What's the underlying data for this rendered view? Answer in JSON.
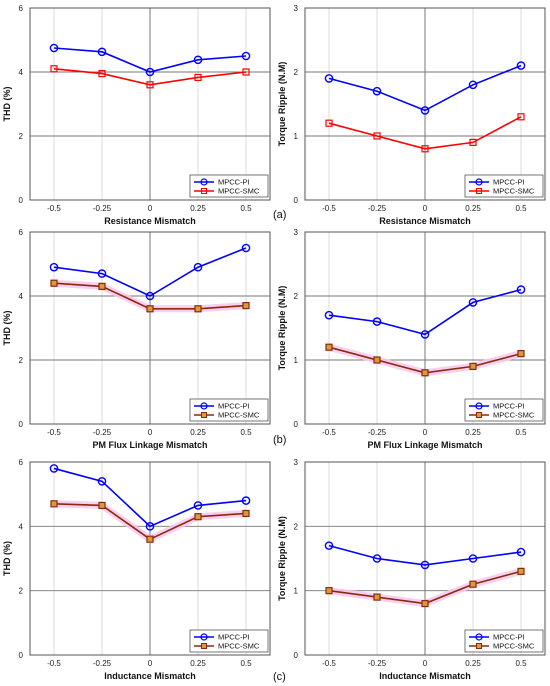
{
  "figure": {
    "row_labels": [
      "(a)",
      "(b)",
      "(c)"
    ]
  },
  "colors": {
    "pi": "#0000ff",
    "smc_a": "#ff0000",
    "smc_bc": "#8b2a0a",
    "smc_marker_fill_bc": "#d89a3a",
    "grid_dark": "#777777",
    "grid_light": "#d4d4d4",
    "highlight": "#f7c6ef"
  },
  "chart_data": [
    {
      "id": "a-thd",
      "type": "line",
      "xlabel": "Resistance Mismatch",
      "ylabel": "THD (%)",
      "categories": [
        "-0.5",
        "-0.25",
        "0",
        "0.25",
        "0.5"
      ],
      "ylim": [
        0,
        6
      ],
      "yticks": [
        "0",
        "2",
        "4",
        "6"
      ],
      "legend": "bottom-right",
      "grid": true,
      "series": [
        {
          "name": "MPCC-PI",
          "values": [
            4.75,
            4.63,
            4.0,
            4.38,
            4.5
          ],
          "marker": "circle"
        },
        {
          "name": "MPCC-SMC",
          "values": [
            4.1,
            3.95,
            3.6,
            3.83,
            4.0
          ],
          "marker": "square"
        }
      ]
    },
    {
      "id": "a-ripple",
      "type": "line",
      "xlabel": "Resistance Mismatch",
      "ylabel": "Torque Ripple (N.M)",
      "categories": [
        "-0.5",
        "-0.25",
        "0",
        "0.25",
        "0.5"
      ],
      "ylim": [
        0,
        3
      ],
      "yticks": [
        "0",
        "1",
        "2",
        "3"
      ],
      "legend": "bottom-right",
      "grid": true,
      "series": [
        {
          "name": "MPCC-PI",
          "values": [
            1.9,
            1.7,
            1.4,
            1.8,
            2.1
          ],
          "marker": "circle"
        },
        {
          "name": "MPCC-SMC",
          "values": [
            1.2,
            1.0,
            0.8,
            0.9,
            1.3
          ],
          "marker": "square"
        }
      ]
    },
    {
      "id": "b-thd",
      "type": "line",
      "xlabel": "PM Flux Linkage Mismatch",
      "ylabel": "THD (%)",
      "categories": [
        "-0.5",
        "-0.25",
        "0",
        "0.25",
        "0.5"
      ],
      "ylim": [
        0,
        6
      ],
      "yticks": [
        "0",
        "2",
        "4",
        "6"
      ],
      "legend": "bottom-right",
      "grid": true,
      "series": [
        {
          "name": "MPCC-PI",
          "values": [
            4.9,
            4.7,
            4.0,
            4.9,
            5.5
          ],
          "marker": "circle"
        },
        {
          "name": "MPCC-SMC",
          "values": [
            4.4,
            4.3,
            3.6,
            3.6,
            3.7
          ],
          "marker": "square"
        }
      ]
    },
    {
      "id": "b-ripple",
      "type": "line",
      "xlabel": "PM Flux Linkage Mismatch",
      "ylabel": "Torque Ripple (N.M)",
      "categories": [
        "-0.5",
        "-0.25",
        "0",
        "0.25",
        "0.5"
      ],
      "ylim": [
        0,
        3
      ],
      "yticks": [
        "0",
        "1",
        "2",
        "3"
      ],
      "legend": "bottom-right",
      "grid": true,
      "series": [
        {
          "name": "MPCC-PI",
          "values": [
            1.7,
            1.6,
            1.4,
            1.9,
            2.1
          ],
          "marker": "circle"
        },
        {
          "name": "MPCC-SMC",
          "values": [
            1.2,
            1.0,
            0.8,
            0.9,
            1.1
          ],
          "marker": "square"
        }
      ]
    },
    {
      "id": "c-thd",
      "type": "line",
      "xlabel": "Inductance Mismatch",
      "ylabel": "THD (%)",
      "categories": [
        "-0.5",
        "-0.25",
        "0",
        "0.25",
        "0.5"
      ],
      "ylim": [
        0,
        6
      ],
      "yticks": [
        "0",
        "2",
        "4",
        "6"
      ],
      "legend": "bottom-right",
      "grid": true,
      "series": [
        {
          "name": "MPCC-PI",
          "values": [
            5.8,
            5.4,
            4.0,
            4.65,
            4.8
          ],
          "marker": "circle"
        },
        {
          "name": "MPCC-SMC",
          "values": [
            4.7,
            4.65,
            3.6,
            4.3,
            4.4
          ],
          "marker": "square"
        }
      ]
    },
    {
      "id": "c-ripple",
      "type": "line",
      "xlabel": "Inductance Mismatch",
      "ylabel": "Torque Ripple (N.M)",
      "categories": [
        "-0.5",
        "-0.25",
        "0",
        "0.25",
        "0.5"
      ],
      "ylim": [
        0,
        3
      ],
      "yticks": [
        "0",
        "1",
        "2",
        "3"
      ],
      "legend": "bottom-right",
      "grid": true,
      "series": [
        {
          "name": "MPCC-PI",
          "values": [
            1.7,
            1.5,
            1.4,
            1.5,
            1.6
          ],
          "marker": "circle"
        },
        {
          "name": "MPCC-SMC",
          "values": [
            1.0,
            0.9,
            0.8,
            1.1,
            1.3
          ],
          "marker": "square"
        }
      ]
    }
  ]
}
